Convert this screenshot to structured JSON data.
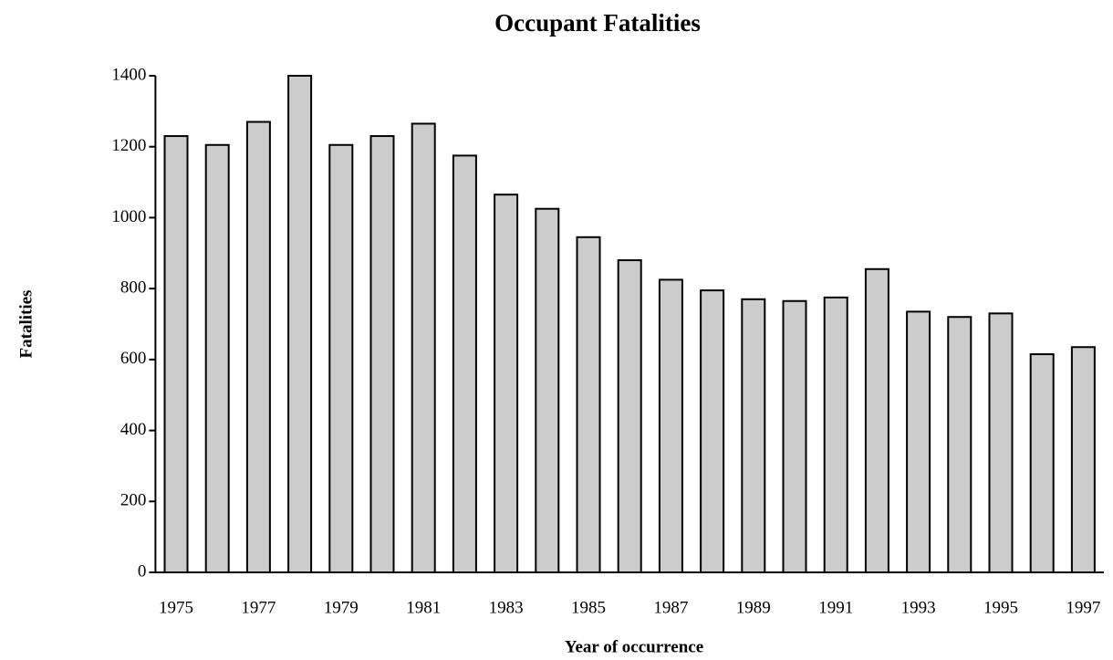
{
  "chart_data": {
    "type": "bar",
    "title": "Occupant Fatalities",
    "x_label": "Year of occurrence",
    "y_label": "Fatalities",
    "categories": [
      "1975",
      null,
      "1977",
      null,
      "1979",
      null,
      "1981",
      null,
      "1983",
      null,
      "1985",
      null,
      "1987",
      null,
      "1989",
      null,
      "1991",
      null,
      "1993",
      null,
      "1995",
      null,
      "1997"
    ],
    "values": [
      1230,
      1205,
      1270,
      1400,
      1205,
      1230,
      1265,
      1175,
      1065,
      1025,
      945,
      880,
      825,
      795,
      770,
      765,
      775,
      855,
      735,
      720,
      730,
      615,
      635
    ],
    "color": "#cccccc",
    "ylim": [
      0,
      1400
    ],
    "yticks": [
      0,
      200,
      400,
      600,
      800,
      1000,
      1200,
      1400
    ],
    "grid": false
  }
}
